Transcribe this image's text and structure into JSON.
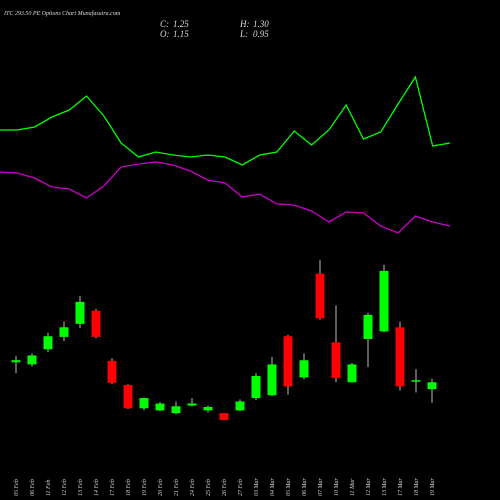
{
  "chart_data": {
    "type": "candlestick",
    "title": "ITC 293.50 PE Options Chart Munafasutra.com",
    "ohlc_info": [
      {
        "label": "C:",
        "value": 1.25,
        "value_label": "1.25"
      },
      {
        "label": "H:",
        "value": 1.3,
        "value_label": "1.30"
      },
      {
        "label": "O:",
        "value": 1.15,
        "value_label": "1.15"
      },
      {
        "label": "L:",
        "value": 0.95,
        "value_label": "0.95"
      }
    ],
    "categories": [
      "05 Feb",
      "06 Feb",
      "11 Feb",
      "12 Feb",
      "13 Feb",
      "14 Feb",
      "17 Feb",
      "18 Feb",
      "19 Feb",
      "20 Feb",
      "21 Feb",
      "24 Feb",
      "25 Feb",
      "26 Feb",
      "27 Feb",
      "03 Mar",
      "04 Mar",
      "05 Mar",
      "06 Mar",
      "07 Mar",
      "10 Mar",
      "11 Mar",
      "12 Mar",
      "13 Mar",
      "17 Mar",
      "18 Mar",
      "19 Mar"
    ],
    "open": [
      1.54,
      1.51,
      1.73,
      1.91,
      2.1,
      2.29,
      1.56,
      1.21,
      0.87,
      0.84,
      0.8,
      0.91,
      0.84,
      0.8,
      0.84,
      1.02,
      1.06,
      1.92,
      1.32,
      2.83,
      1.83,
      1.25,
      1.88,
      1.99,
      2.05,
      1.27,
      1.15
    ],
    "high": [
      1.63,
      1.67,
      1.97,
      2.13,
      2.51,
      2.32,
      1.6,
      1.22,
      1.03,
      0.96,
      0.97,
      1.02,
      0.91,
      0.8,
      1.0,
      1.38,
      1.62,
      1.94,
      1.67,
      3.03,
      2.37,
      1.53,
      2.26,
      2.96,
      2.13,
      1.44,
      1.3
    ],
    "low": [
      1.38,
      1.48,
      1.69,
      1.85,
      2.04,
      1.89,
      1.22,
      0.86,
      0.84,
      0.83,
      0.78,
      0.9,
      0.81,
      0.7,
      0.83,
      0.99,
      1.05,
      1.07,
      1.29,
      2.16,
      1.25,
      1.24,
      1.47,
      1.98,
      1.13,
      1.1,
      0.95
    ],
    "close": [
      1.57,
      1.64,
      1.92,
      2.05,
      2.42,
      1.91,
      1.24,
      0.87,
      1.02,
      0.94,
      0.9,
      0.94,
      0.89,
      0.7,
      0.97,
      1.34,
      1.51,
      1.19,
      1.57,
      2.18,
      1.31,
      1.51,
      2.23,
      2.87,
      1.19,
      1.28,
      1.25
    ],
    "up_color": "#00ff00",
    "down_color": "#ff0000",
    "series": [
      {
        "color": "#00ff00",
        "values": [
          120,
          120,
          123,
          133,
          140,
          154,
          134,
          107,
          93,
          98,
          95,
          93,
          95,
          93,
          85,
          95,
          98,
          119,
          105,
          120,
          145,
          111,
          118,
          146,
          173,
          104,
          107
        ]
      },
      {
        "color": "#cc00cc",
        "values": [
          78,
          77,
          72,
          63,
          61,
          52,
          64,
          83,
          86,
          88,
          85,
          79,
          70,
          67,
          53,
          56,
          46,
          45,
          39,
          28,
          38,
          37,
          24,
          17,
          34,
          28,
          24
        ]
      }
    ]
  }
}
